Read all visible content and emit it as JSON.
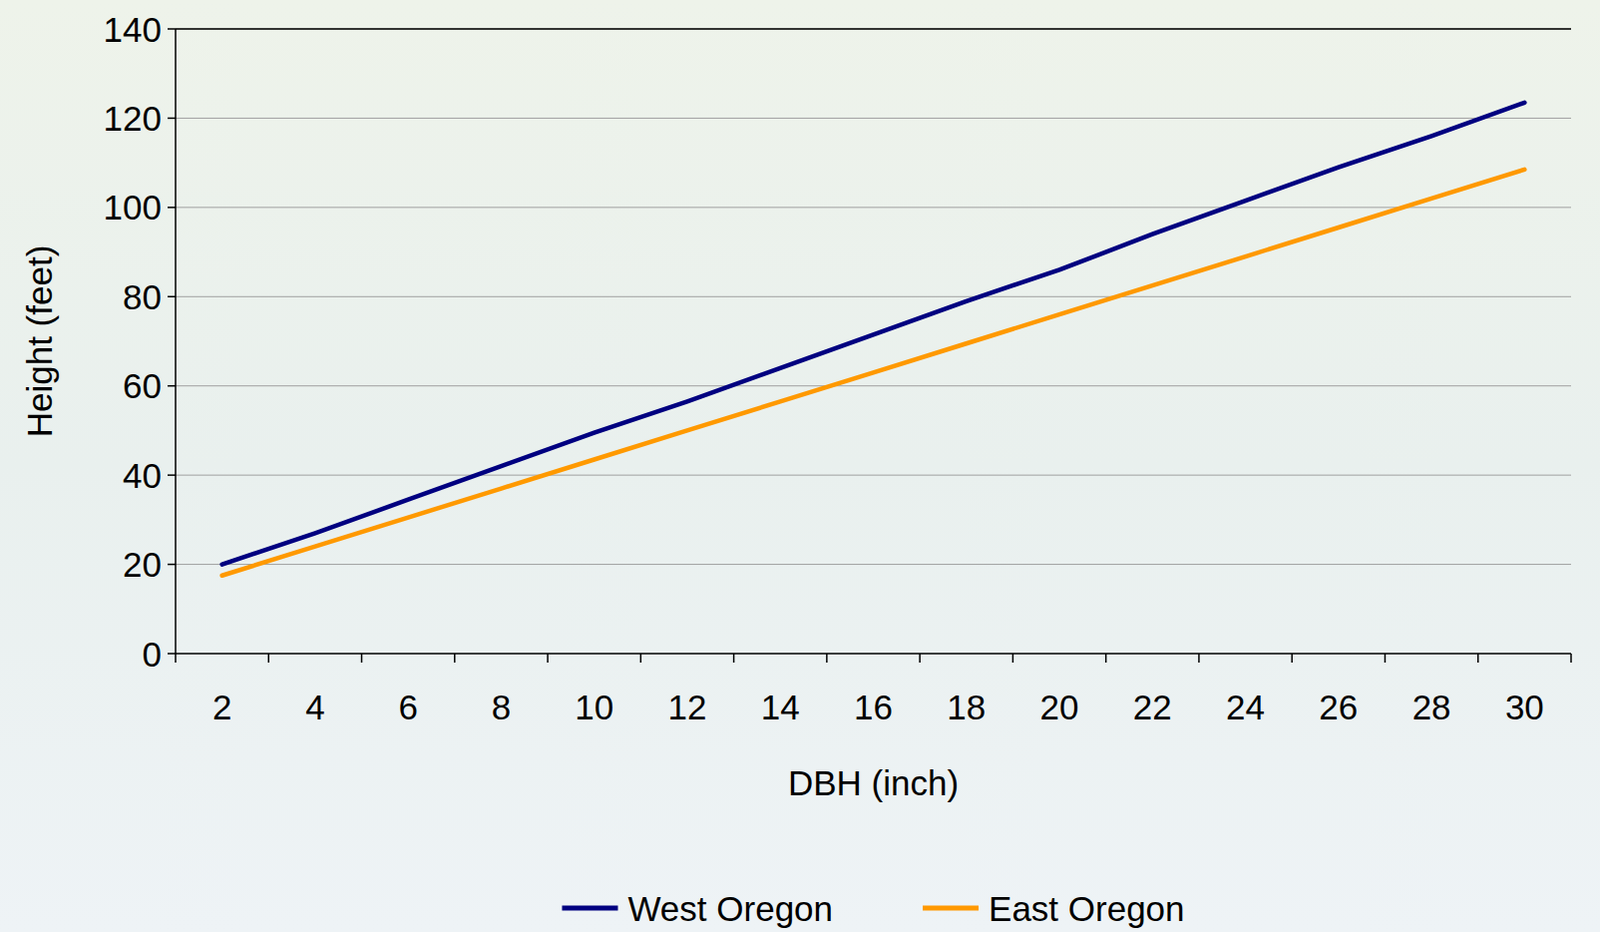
{
  "chart_data": {
    "type": "line",
    "x_label": "DBH (inch)",
    "y_label": "Height (feet)",
    "categories": [
      "2",
      "4",
      "6",
      "8",
      "10",
      "12",
      "14",
      "16",
      "18",
      "20",
      "22",
      "24",
      "26",
      "28",
      "30"
    ],
    "series": [
      {
        "name": "West Oregon",
        "color": "#000080",
        "values": [
          20,
          27,
          34.5,
          42,
          49.5,
          56.5,
          64,
          71.5,
          79,
          86,
          94,
          101.5,
          109,
          116,
          123.5
        ]
      },
      {
        "name": "East Oregon",
        "color": "#ff9900",
        "values": [
          17.5,
          24,
          30.5,
          37,
          43.5,
          50,
          56.5,
          63,
          69.5,
          76,
          82.5,
          89,
          95.5,
          102,
          108.5
        ]
      }
    ],
    "ylim": [
      0,
      140
    ],
    "yticks": [
      0,
      20,
      40,
      60,
      80,
      100,
      120,
      140
    ],
    "grid": true,
    "legend": "bottom"
  }
}
